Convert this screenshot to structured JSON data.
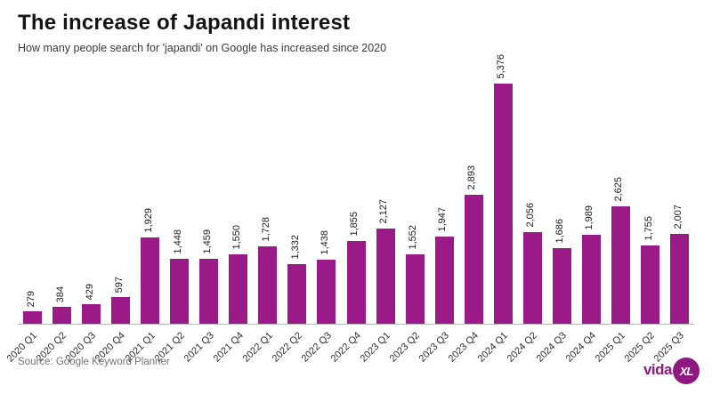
{
  "header": {
    "title": "The increase of Japandi interest",
    "subtitle": "How many people search for 'japandi' on Google has increased since 2020"
  },
  "chart_data": {
    "type": "bar",
    "title": "The increase of Japandi interest",
    "subtitle": "How many people search for 'japandi' on Google has increased since 2020",
    "categories": [
      "2020 Q1",
      "2020 Q2",
      "2020 Q3",
      "2020 Q4",
      "2021 Q1",
      "2021 Q2",
      "2021 Q3",
      "2021 Q4",
      "2022 Q1",
      "2022 Q2",
      "2022 Q3",
      "2022 Q4",
      "2023 Q1",
      "2023 Q2",
      "2023 Q3",
      "2023 Q4",
      "2024 Q1",
      "2024 Q2",
      "2024 Q3",
      "2024 Q4",
      "2025 Q1",
      "2025 Q2",
      "2025 Q3"
    ],
    "values": [
      279,
      384,
      429,
      597,
      1929,
      1448,
      1459,
      1550,
      1728,
      1332,
      1438,
      1855,
      2127,
      1552,
      1947,
      2893,
      5376,
      2056,
      1686,
      1989,
      2625,
      1755,
      2007
    ],
    "value_labels": [
      "279",
      "384",
      "429",
      "597",
      "1,929",
      "1,448",
      "1,459",
      "1,550",
      "1,728",
      "1,332",
      "1,438",
      "1,855",
      "2,127",
      "1,552",
      "1,947",
      "2,893",
      "5,376",
      "2,056",
      "1,686",
      "1,989",
      "2,625",
      "1,755",
      "2,007"
    ],
    "xlabel": "",
    "ylabel": "",
    "ylim": [
      0,
      5376
    ],
    "grid": false,
    "legend": false,
    "bar_color": "#9a1a87",
    "value_label_rotation": 90,
    "x_tick_rotation": 45
  },
  "footer": {
    "source": "Source: Google Keyword Planner",
    "logo": {
      "text": "vida",
      "badge": "XL"
    }
  },
  "colors": {
    "bar": "#9a1a87",
    "title": "#141414",
    "subtitle": "#3a3a3a",
    "source": "#737373",
    "axis_line": "#b5b5b5",
    "logo": "#8e1780",
    "background": "#ffffff"
  }
}
